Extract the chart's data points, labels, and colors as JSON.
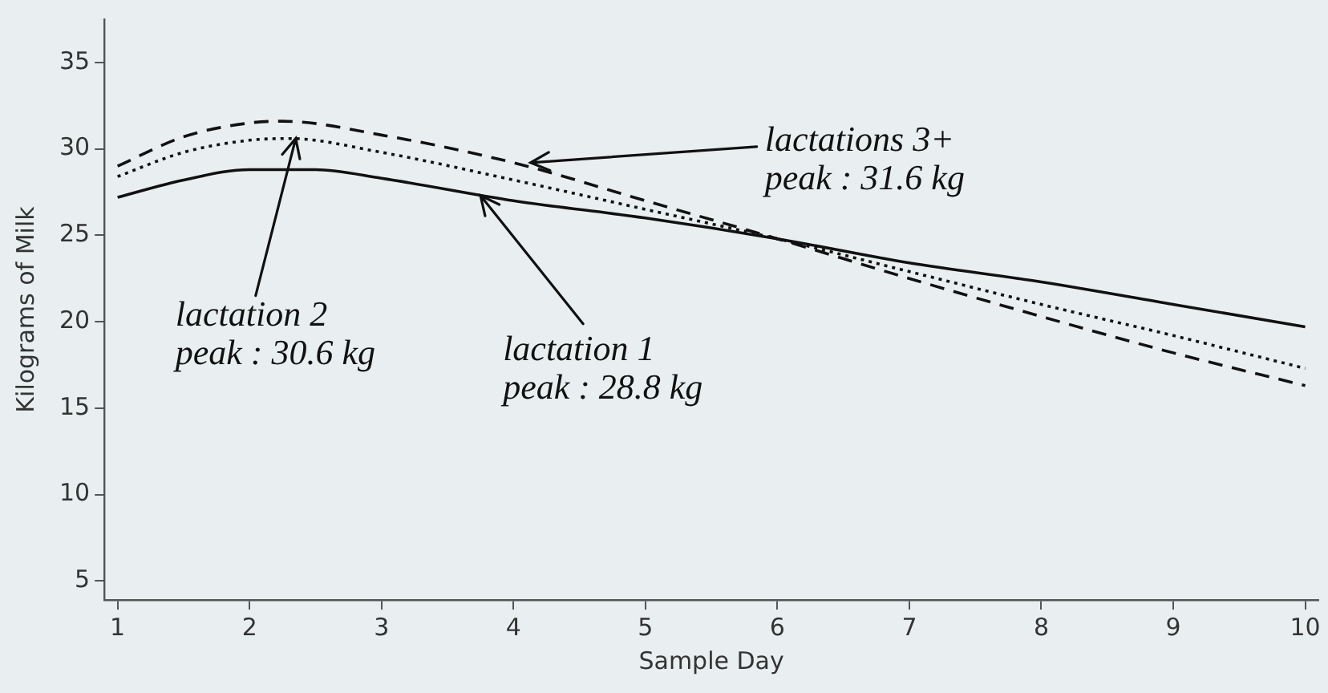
{
  "chart_data": {
    "type": "line",
    "xlabel": "Sample Day",
    "ylabel": "Kilograms of Milk",
    "xlim": [
      0.9,
      10.1
    ],
    "xticks": [
      1,
      2,
      3,
      4,
      5,
      6,
      7,
      8,
      9,
      10
    ],
    "ylim": [
      3.9,
      37.5
    ],
    "yticks": [
      5,
      10,
      15,
      20,
      25,
      30,
      35
    ],
    "grid": false,
    "legend": false,
    "marker": "none",
    "series": [
      {
        "color": "#111111",
        "line_style": "solid",
        "x": [
          1,
          1.5,
          2,
          2.5,
          3,
          4,
          5,
          6,
          7,
          8,
          9,
          10
        ],
        "values": [
          27.2,
          28.2,
          28.8,
          28.8,
          28.3,
          27.0,
          26.0,
          24.8,
          23.4,
          22.3,
          21.0,
          19.7
        ]
      },
      {
        "color": "#111111",
        "line_style": "dotted",
        "x": [
          1,
          1.5,
          2,
          2.3,
          3,
          4,
          5,
          6,
          7,
          8,
          9,
          10
        ],
        "values": [
          28.4,
          29.8,
          30.5,
          30.6,
          29.8,
          28.2,
          26.5,
          24.8,
          22.9,
          21.0,
          19.2,
          17.3
        ]
      },
      {
        "color": "#111111",
        "line_style": "dashed",
        "x": [
          1,
          1.5,
          2,
          2.25,
          3,
          4,
          5,
          6,
          7,
          8,
          9,
          10
        ],
        "values": [
          29.0,
          30.7,
          31.5,
          31.6,
          30.8,
          29.2,
          27.0,
          24.8,
          22.5,
          20.3,
          18.2,
          16.3
        ]
      }
    ],
    "annotations": [
      {
        "text": "lactations 3+\npeak : 31.6 kg",
        "x": 4.13,
        "y": 29.2
      },
      {
        "text": "lactation 2\npeak : 30.6 kg",
        "x": 2.35,
        "y": 30.6
      },
      {
        "text": "lactation 1\npeak : 28.8 kg",
        "x": 3.75,
        "y": 27.3
      }
    ]
  }
}
